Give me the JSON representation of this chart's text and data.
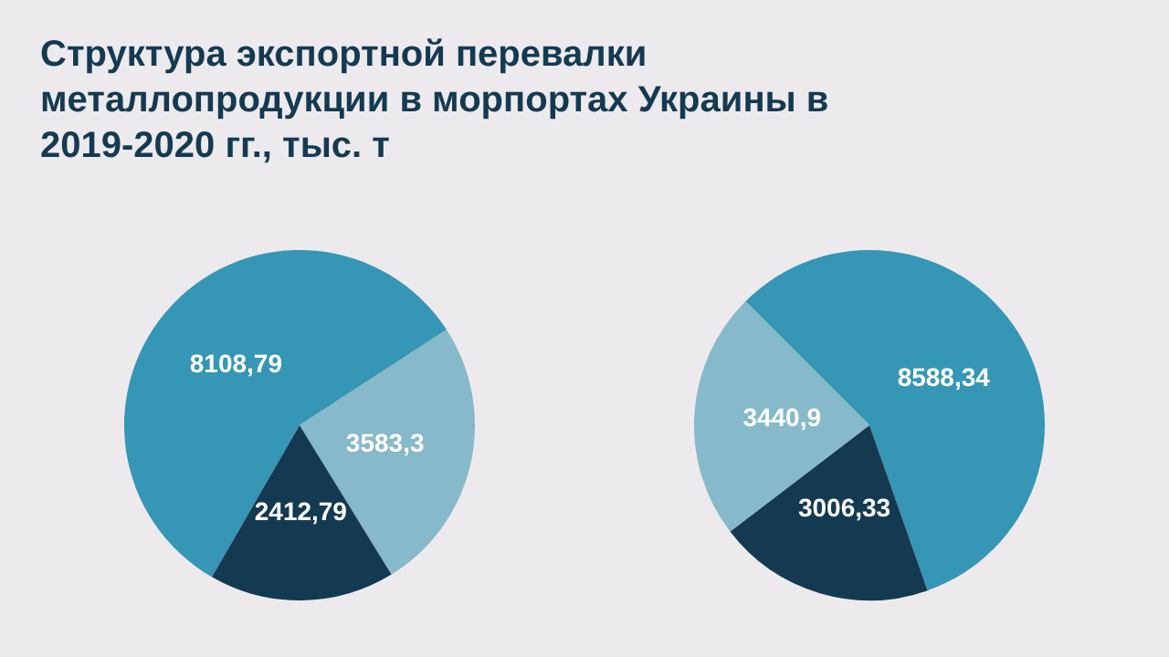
{
  "chart_data": [
    {
      "type": "pie",
      "title": "Структура экспортной перевалки металлопродукции в морпортах Украины в 2019-2020 гг., тыс. т",
      "categories": [
        null,
        null,
        null
      ],
      "values": [
        8108.79,
        3583.3,
        2412.79
      ],
      "colors": [
        "#3596b5",
        "#86b9c9",
        "#143a52"
      ],
      "value_labels": [
        "8108,79",
        "3583,3",
        "2412,79"
      ]
    },
    {
      "type": "pie",
      "categories": [
        null,
        null,
        null
      ],
      "values": [
        8588.34,
        3006.33,
        3440.9
      ],
      "colors": [
        "#3596b5",
        "#143a52",
        "#86b9c9"
      ],
      "value_labels": [
        "8588,34",
        "3006,33",
        "3440,9"
      ]
    }
  ]
}
